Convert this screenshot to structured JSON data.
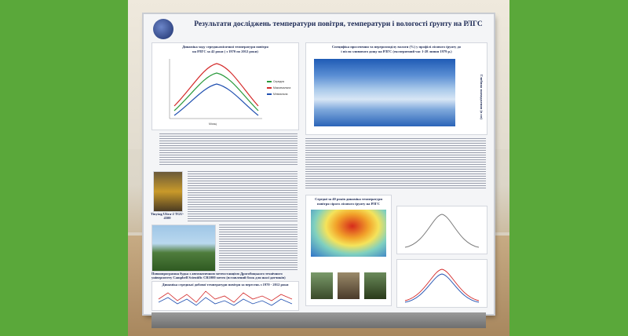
{
  "poster": {
    "title_line1": "Результати досліджень температури повітря, температури і вологості  ґрунту на РЛГС",
    "chart1": {
      "title_line1": "Динаміка ходу середньомісячної температури повітря",
      "title_line2": "на РЛГС за 42 роки  ( з 1970 по 2012 роки)",
      "ylabel": "Температура повітря, °С",
      "xlabel": "Місяці",
      "legend": [
        "Середня",
        "Максимальна",
        "Мінімальна"
      ],
      "colors": [
        "#2a9a3c",
        "#d42a2a",
        "#1f4fb0"
      ]
    },
    "chart2": {
      "title_line1": "Специфіка просочення та перерозподілу вологи (%) у профілі лісового ґрунту до",
      "title_line2": "і після зливового дощу на РЛГС (експеритний час 1-28 липня 1979 р.)",
      "side_label": "Глибина знаходження (в см)"
    },
    "device_caption": "Tinytag Ultra-2 TGU-4500",
    "station_caption": "Повнопрограмна будка з автоматичною метеостанцією Дрогобицького технічного університету Campbell Scientific CR1000 метео (вставлений блок для шасі датчиків)",
    "section3": {
      "title_line1": "Середні за 40 років динаміка температури",
      "title_line2": "повітря сірого лісового ґрунту на РЛГС"
    },
    "chart4": {
      "title": "Динаміка середньої добової температури повітря за вересень з 1970 - 2012 роки"
    }
  }
}
